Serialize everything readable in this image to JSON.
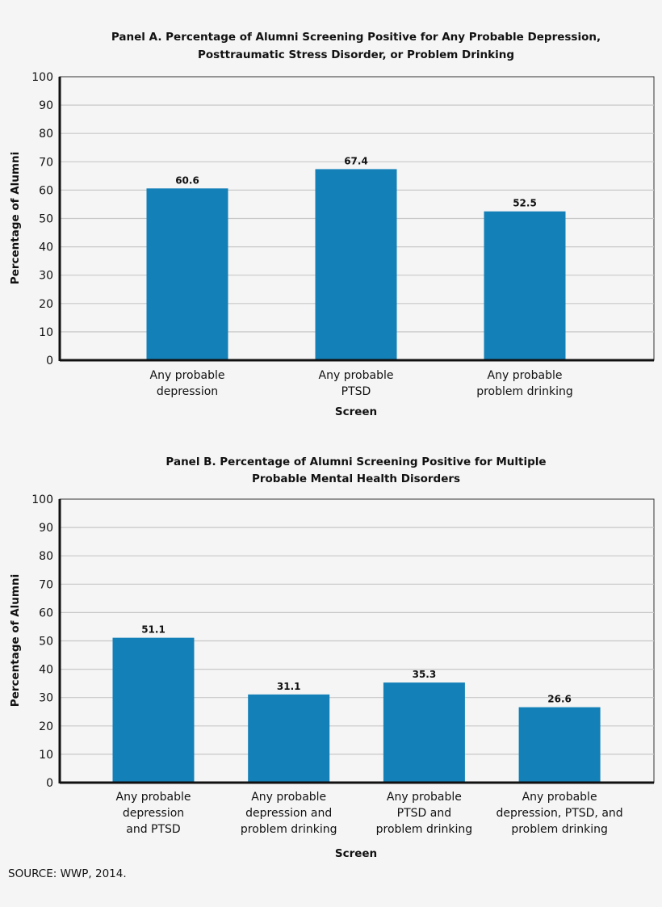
{
  "chart_data": [
    {
      "type": "bar",
      "title": [
        "Panel A. Percentage of Alumni Screening Positive for Any Probable Depression,",
        "Posttraumatic Stress Disorder, or Problem Drinking"
      ],
      "categories": [
        [
          "Any probable",
          "depression"
        ],
        [
          "Any probable",
          "PTSD"
        ],
        [
          "Any probable",
          "problem drinking"
        ]
      ],
      "values": [
        60.6,
        67.4,
        52.5
      ],
      "data_labels": [
        "60.6",
        "67.4",
        "52.5"
      ],
      "xlabel": "Screen",
      "ylabel": "Percentage of Alumni",
      "ylim": [
        0,
        100
      ],
      "yticks": [
        0,
        10,
        20,
        30,
        40,
        50,
        60,
        70,
        80,
        90,
        100
      ],
      "grid": true,
      "bar_color": "#1380b8"
    },
    {
      "type": "bar",
      "title": [
        "Panel B. Percentage of Alumni Screening Positive for Multiple",
        "Probable Mental Health Disorders"
      ],
      "categories": [
        [
          "Any probable",
          "depression",
          "and PTSD"
        ],
        [
          "Any probable",
          "depression and",
          "problem drinking"
        ],
        [
          "Any probable",
          "PTSD and",
          "problem drinking"
        ],
        [
          "Any probable",
          "depression, PTSD, and",
          "problem drinking"
        ]
      ],
      "values": [
        51.1,
        31.1,
        35.3,
        26.6
      ],
      "data_labels": [
        "51.1",
        "31.1",
        "35.3",
        "26.6"
      ],
      "xlabel": "Screen",
      "ylabel": "Percentage of Alumni",
      "ylim": [
        0,
        100
      ],
      "yticks": [
        0,
        10,
        20,
        30,
        40,
        50,
        60,
        70,
        80,
        90,
        100
      ],
      "grid": true,
      "bar_color": "#1380b8"
    }
  ],
  "source": "SOURCE: WWP, 2014."
}
